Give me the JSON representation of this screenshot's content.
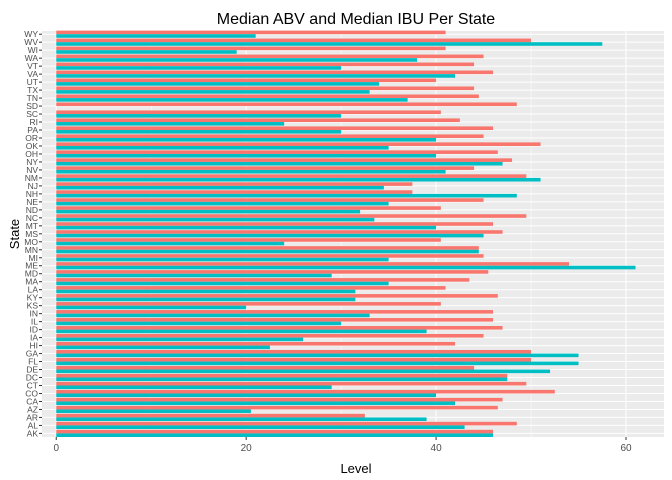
{
  "chart_data": {
    "type": "bar",
    "orientation": "horizontal",
    "title": "Median ABV and Median IBU Per State",
    "xlabel": "Level",
    "ylabel": "State",
    "xlim": [
      -1.5,
      64
    ],
    "xticks": [
      0,
      20,
      40,
      60
    ],
    "grid": true,
    "legend": "none",
    "categories": [
      "AK",
      "AL",
      "AR",
      "AZ",
      "CA",
      "CO",
      "CT",
      "DC",
      "DE",
      "FL",
      "GA",
      "HI",
      "IA",
      "ID",
      "IL",
      "IN",
      "KS",
      "KY",
      "LA",
      "MA",
      "MD",
      "ME",
      "MI",
      "MN",
      "MO",
      "MS",
      "MT",
      "NC",
      "ND",
      "NE",
      "NH",
      "NJ",
      "NM",
      "NV",
      "NY",
      "OH",
      "OK",
      "OR",
      "PA",
      "RI",
      "SC",
      "SD",
      "TN",
      "TX",
      "UT",
      "VA",
      "VT",
      "WA",
      "WI",
      "WV",
      "WY"
    ],
    "series": [
      {
        "name": "",
        "color": "#F8766D",
        "values": [
          46.0,
          48.5,
          32.5,
          46.5,
          47.0,
          52.5,
          49.5,
          47.5,
          44.0,
          50.0,
          50.0,
          42.0,
          45.0,
          47.0,
          46.0,
          46.0,
          40.5,
          46.5,
          41.0,
          43.5,
          45.5,
          54.0,
          45.0,
          44.5,
          40.5,
          47.0,
          46.0,
          49.5,
          40.5,
          45.0,
          37.5,
          37.5,
          49.5,
          44.0,
          48.0,
          46.5,
          51.0,
          45.0,
          46.0,
          42.5,
          40.5,
          48.5,
          44.5,
          44.0,
          40.0,
          46.0,
          44.0,
          45.0,
          41.0,
          50.0,
          41.0
        ]
      },
      {
        "name": "",
        "color": "#00BFC4",
        "values": [
          46.0,
          43.0,
          39.0,
          20.5,
          42.0,
          40.0,
          29.0,
          47.5,
          52.0,
          55.0,
          55.0,
          22.5,
          26.0,
          39.0,
          30.0,
          33.0,
          20.0,
          31.5,
          31.5,
          35.0,
          29.0,
          61.0,
          35.0,
          44.5,
          24.0,
          45.0,
          40.0,
          33.5,
          32.0,
          35.0,
          48.5,
          34.5,
          51.0,
          41.0,
          47.0,
          40.0,
          35.0,
          40.0,
          30.0,
          24.0,
          30.0,
          0.0,
          37.0,
          33.0,
          34.0,
          42.0,
          30.0,
          38.0,
          19.0,
          57.5,
          21.0
        ]
      }
    ]
  }
}
